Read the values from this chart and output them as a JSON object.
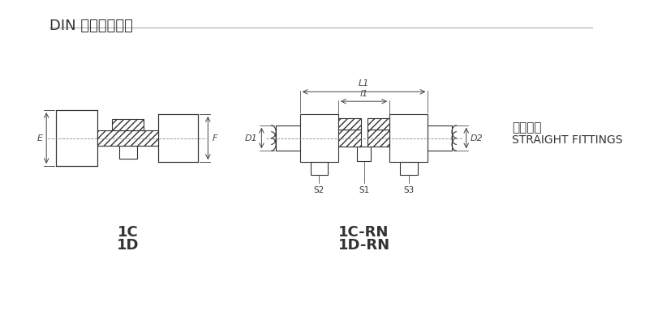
{
  "title": "DIN 卡套式管接头",
  "bg_color": "#ffffff",
  "line_color": "#333333",
  "hatch_color": "#555555",
  "dim_color": "#444444",
  "label1_line1": "1C",
  "label1_line2": "1D",
  "label2_line1": "1C-RN",
  "label2_line2": "1D-RN",
  "label_right_line1": "直通接头",
  "label_right_line2": "STRAIGHT FITTINGS",
  "dim_labels_left": [
    "E",
    "F"
  ],
  "dim_labels_right": [
    "D1",
    "D2",
    "L1",
    "l1",
    "S1",
    "S2",
    "S3"
  ]
}
